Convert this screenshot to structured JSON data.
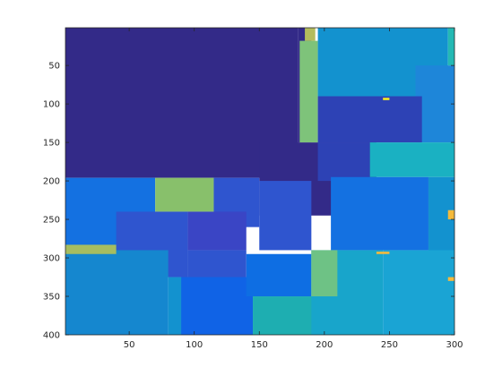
{
  "chart_data": {
    "type": "heatmap",
    "title": "",
    "xlabel": "",
    "ylabel": "",
    "xlim": [
      1,
      300
    ],
    "ylim": [
      1,
      400
    ],
    "y_direction": "reverse",
    "xticks": [
      50,
      100,
      150,
      200,
      250,
      300
    ],
    "yticks": [
      50,
      100,
      150,
      200,
      250,
      300,
      350,
      400
    ],
    "colormap": "parula",
    "colorbar": false,
    "grid": false,
    "regions": [
      {
        "x": [
          1,
          180
        ],
        "y": [
          1,
          196
        ],
        "color": "#332a88"
      },
      {
        "x": [
          180,
          190
        ],
        "y": [
          1,
          150
        ],
        "color": "#332a88"
      },
      {
        "x": [
          150,
          240
        ],
        "y": [
          150,
          245
        ],
        "color": "#332a88"
      },
      {
        "x": [
          185,
          193
        ],
        "y": [
          1,
          18
        ],
        "color": "#b4bc5d"
      },
      {
        "x": [
          181,
          195
        ],
        "y": [
          18,
          150
        ],
        "color": "#7ec37a"
      },
      {
        "x": [
          195,
          295
        ],
        "y": [
          1,
          90
        ],
        "color": "#1392cf"
      },
      {
        "x": [
          295,
          300
        ],
        "y": [
          1,
          50
        ],
        "color": "#24b9b4"
      },
      {
        "x": [
          270,
          300
        ],
        "y": [
          50,
          150
        ],
        "color": "#1e86d9"
      },
      {
        "x": [
          195,
          275
        ],
        "y": [
          90,
          150
        ],
        "color": "#2d42b5"
      },
      {
        "x": [
          195,
          235
        ],
        "y": [
          150,
          200
        ],
        "color": "#2d42b5"
      },
      {
        "x": [
          235,
          300
        ],
        "y": [
          150,
          195
        ],
        "color": "#1ab1c2"
      },
      {
        "x": [
          1,
          70
        ],
        "y": [
          196,
          290
        ],
        "color": "#1471e1"
      },
      {
        "x": [
          70,
          115
        ],
        "y": [
          196,
          240
        ],
        "color": "#88c06b"
      },
      {
        "x": [
          115,
          150
        ],
        "y": [
          196,
          260
        ],
        "color": "#2f55cf"
      },
      {
        "x": [
          150,
          190
        ],
        "y": [
          200,
          290
        ],
        "color": "#2f55cf"
      },
      {
        "x": [
          95,
          140
        ],
        "y": [
          240,
          290
        ],
        "color": "#3a45c5"
      },
      {
        "x": [
          40,
          95
        ],
        "y": [
          240,
          325
        ],
        "color": "#2f55cf"
      },
      {
        "x": [
          95,
          140
        ],
        "y": [
          290,
          325
        ],
        "color": "#2f55cf"
      },
      {
        "x": [
          205,
          280
        ],
        "y": [
          195,
          290
        ],
        "color": "#1471e1"
      },
      {
        "x": [
          280,
          300
        ],
        "y": [
          195,
          300
        ],
        "color": "#1392cf"
      },
      {
        "x": [
          1,
          80
        ],
        "y": [
          290,
          400
        ],
        "color": "#1587cf"
      },
      {
        "x": [
          80,
          140
        ],
        "y": [
          325,
          400
        ],
        "color": "#1392cf"
      },
      {
        "x": [
          90,
          145
        ],
        "y": [
          325,
          400
        ],
        "color": "#1063e6"
      },
      {
        "x": [
          140,
          190
        ],
        "y": [
          295,
          350
        ],
        "color": "#0e6ee3"
      },
      {
        "x": [
          145,
          195
        ],
        "y": [
          350,
          400
        ],
        "color": "#1eaeb1"
      },
      {
        "x": [
          190,
          245
        ],
        "y": [
          290,
          400
        ],
        "color": "#18a5cb"
      },
      {
        "x": [
          245,
          300
        ],
        "y": [
          290,
          400
        ],
        "color": "#1aa4d4"
      },
      {
        "x": [
          190,
          210
        ],
        "y": [
          290,
          350
        ],
        "color": "#6ec285"
      },
      {
        "x": [
          1,
          40
        ],
        "y": [
          283,
          295
        ],
        "color": "#a6bd60"
      },
      {
        "x": [
          295,
          300
        ],
        "y": [
          238,
          250
        ],
        "color": "#f4ba3c"
      },
      {
        "x": [
          295,
          300
        ],
        "y": [
          325,
          330
        ],
        "color": "#f4ba3c"
      },
      {
        "x": [
          240,
          250
        ],
        "y": [
          292,
          295
        ],
        "color": "#f4ba3c"
      },
      {
        "x": [
          245,
          250
        ],
        "y": [
          92,
          95
        ],
        "color": "#f9ec1f"
      }
    ]
  }
}
